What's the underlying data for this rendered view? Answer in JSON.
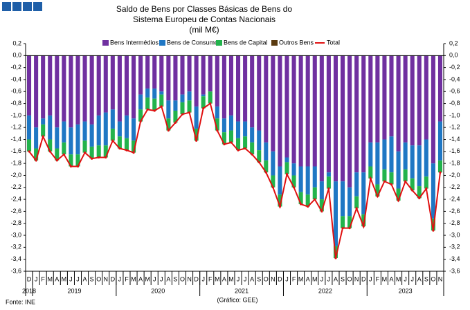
{
  "chart_data": {
    "type": "bar",
    "title": "Saldo de Bens por Classes Básicas de Bens do",
    "subtitle": "Sistema Europeu de Contas Nacionais",
    "unit_label": "(mil M€)",
    "source": "Fonte: INE",
    "credit": "(Gráfico: GEE)",
    "categories": [
      "D",
      "J",
      "F",
      "M",
      "A",
      "M",
      "J",
      "J",
      "A",
      "S",
      "O",
      "N",
      "D",
      "J",
      "F",
      "M",
      "A",
      "M",
      "J",
      "J",
      "A",
      "S",
      "O",
      "N",
      "D",
      "J",
      "F",
      "M",
      "A",
      "M",
      "J",
      "J",
      "A",
      "S",
      "O",
      "N",
      "D",
      "J",
      "F",
      "M",
      "A",
      "M",
      "J",
      "J",
      "A",
      "S",
      "O",
      "N",
      "D",
      "J",
      "F",
      "M",
      "A",
      "M",
      "J",
      "J",
      "A",
      "S",
      "O",
      "N"
    ],
    "year_labels": [
      "2018",
      "2019",
      "2020",
      "2021",
      "2022",
      "2023"
    ],
    "series": [
      {
        "name": "Bens Intermédios",
        "color": "#7030a0",
        "values": [
          -1.0,
          -1.2,
          -1.05,
          -1.0,
          -1.2,
          -1.1,
          -1.2,
          -1.15,
          -1.1,
          -1.15,
          -1.0,
          -0.95,
          -0.9,
          -1.1,
          -1.0,
          -1.05,
          -0.65,
          -0.55,
          -0.55,
          -0.6,
          -0.75,
          -0.75,
          -0.65,
          -0.6,
          -0.85,
          -0.65,
          -0.6,
          -0.85,
          -1.05,
          -1.0,
          -1.1,
          -1.1,
          -1.2,
          -1.25,
          -1.45,
          -1.6,
          -1.85,
          -1.7,
          -1.8,
          -1.85,
          -1.85,
          -1.85,
          -2.1,
          -1.95,
          -2.1,
          -2.1,
          -2.2,
          -1.95,
          -1.95,
          -1.45,
          -1.45,
          -1.4,
          -1.35,
          -1.6,
          -1.45,
          -1.5,
          -1.5,
          -1.4,
          -1.8,
          -1.1
        ]
      },
      {
        "name": "Bens de Consumo",
        "color": "#1f77c4",
        "values": [
          -0.4,
          -0.35,
          -0.1,
          -0.4,
          -0.35,
          -0.35,
          -0.45,
          -0.5,
          -0.32,
          -0.37,
          -0.5,
          -0.55,
          -0.32,
          -0.25,
          -0.38,
          -0.37,
          -0.25,
          -0.15,
          -0.17,
          -0.05,
          -0.3,
          -0.17,
          -0.13,
          -0.15,
          -0.37,
          -0.03,
          0,
          -0.2,
          -0.23,
          -0.25,
          -0.28,
          -0.25,
          -0.25,
          -0.33,
          -0.3,
          -0.4,
          -0.47,
          -0.08,
          -0.2,
          -0.43,
          -0.47,
          -0.35,
          -0.3,
          -0.07,
          -1.08,
          -0.58,
          -0.48,
          -0.4,
          -0.7,
          -0.4,
          -0.7,
          -0.5,
          -0.6,
          -0.62,
          -0.45,
          -0.55,
          -0.68,
          -0.62,
          -0.92,
          -0.65
        ]
      },
      {
        "name": "Bens de Capital",
        "color": "#22b34c",
        "values": [
          -0.2,
          -0.2,
          -0.2,
          -0.2,
          -0.2,
          -0.2,
          -0.2,
          -0.2,
          -0.2,
          -0.2,
          -0.2,
          -0.2,
          -0.2,
          -0.2,
          -0.2,
          -0.2,
          -0.2,
          -0.2,
          -0.2,
          -0.2,
          -0.2,
          -0.2,
          -0.2,
          -0.2,
          -0.2,
          -0.2,
          -0.2,
          -0.2,
          -0.2,
          -0.2,
          -0.2,
          -0.2,
          -0.2,
          -0.2,
          -0.2,
          -0.2,
          -0.2,
          -0.2,
          -0.2,
          -0.2,
          -0.2,
          -0.2,
          -0.2,
          -0.2,
          -0.2,
          -0.2,
          -0.2,
          -0.2,
          -0.2,
          -0.2,
          -0.2,
          -0.2,
          -0.2,
          -0.2,
          -0.2,
          -0.2,
          -0.2,
          -0.2,
          -0.2,
          -0.2
        ]
      },
      {
        "name": "Outros Bens",
        "color": "#5a3a10",
        "values": [
          0,
          0,
          0,
          0,
          0,
          0,
          0,
          0,
          0,
          0,
          0,
          0,
          0,
          0,
          0,
          0,
          0,
          0,
          0,
          0,
          0,
          0,
          0,
          0,
          0,
          0,
          0,
          0,
          0,
          0,
          0,
          0,
          0,
          0,
          0,
          0,
          0,
          0,
          0,
          0,
          0,
          0,
          0,
          0,
          0,
          0,
          0,
          0,
          0,
          0,
          0,
          0,
          0,
          0,
          0,
          0,
          0,
          0,
          0,
          0
        ]
      },
      {
        "name": "Total",
        "color": "#e01010",
        "kind": "line",
        "values": [
          -1.6,
          -1.75,
          -1.35,
          -1.6,
          -1.75,
          -1.65,
          -1.85,
          -1.85,
          -1.62,
          -1.72,
          -1.7,
          -1.7,
          -1.42,
          -1.55,
          -1.58,
          -1.62,
          -1.1,
          -0.9,
          -0.92,
          -0.85,
          -1.25,
          -1.12,
          -0.98,
          -0.95,
          -1.42,
          -0.88,
          -0.8,
          -1.25,
          -1.48,
          -1.45,
          -1.58,
          -1.55,
          -1.65,
          -1.78,
          -1.95,
          -2.2,
          -2.52,
          -1.98,
          -2.2,
          -2.48,
          -2.52,
          -2.4,
          -2.6,
          -2.22,
          -3.38,
          -2.88,
          -2.88,
          -2.55,
          -2.85,
          -2.05,
          -2.35,
          -2.1,
          -2.15,
          -2.42,
          -2.1,
          -2.25,
          -2.38,
          -2.22,
          -2.92,
          -1.95
        ]
      }
    ],
    "ylim": [
      -3.6,
      0.2
    ],
    "yticks": [
      {
        "value": 0.2,
        "label": "0,2"
      },
      {
        "value": 0,
        "label": "0,0"
      },
      {
        "value": -0.2,
        "label": "-0,2"
      },
      {
        "value": -0.4,
        "label": "-0,4"
      },
      {
        "value": -0.6,
        "label": "-0,6"
      },
      {
        "value": -0.8,
        "label": "-0,8"
      },
      {
        "value": -1.0,
        "label": "-1,0"
      },
      {
        "value": -1.2,
        "label": "-1,2"
      },
      {
        "value": -1.4,
        "label": "-1,4"
      },
      {
        "value": -1.6,
        "label": "-1,6"
      },
      {
        "value": -1.8,
        "label": "-1,8"
      },
      {
        "value": -2.0,
        "label": "-2,0"
      },
      {
        "value": -2.2,
        "label": "-2,2"
      },
      {
        "value": -2.4,
        "label": "-2,4"
      },
      {
        "value": -2.6,
        "label": "-2,6"
      },
      {
        "value": -2.8,
        "label": "-2,8"
      },
      {
        "value": -3.0,
        "label": "-3,0"
      },
      {
        "value": -3.2,
        "label": "-3,2"
      },
      {
        "value": -3.4,
        "label": "-3,4"
      },
      {
        "value": -3.6,
        "label": "-3,6"
      }
    ],
    "legend": "top"
  }
}
